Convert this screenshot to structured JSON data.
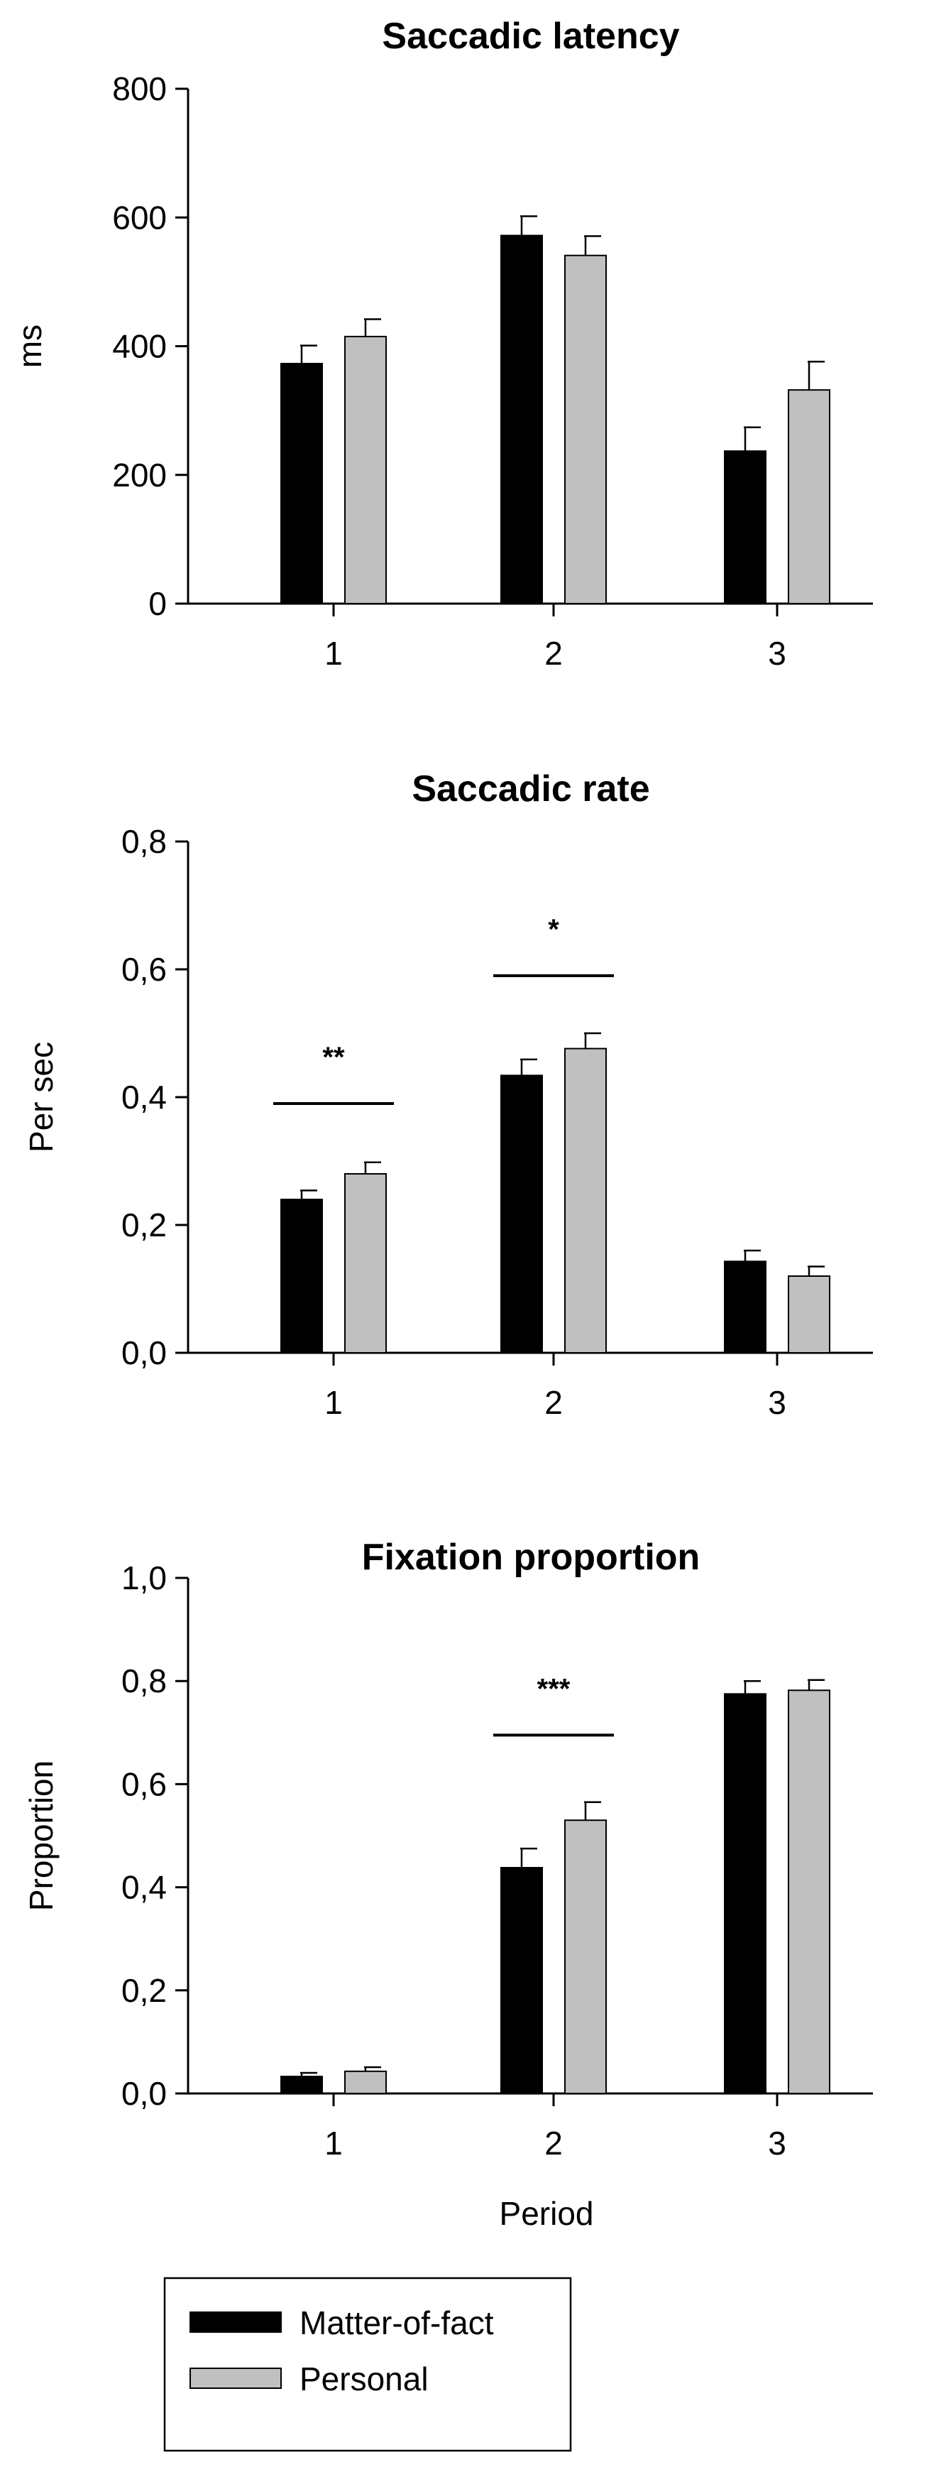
{
  "chart_data": [
    {
      "type": "bar",
      "title": "Saccadic latency",
      "xlabel": "",
      "ylabel": "ms",
      "categories": [
        "1",
        "2",
        "3"
      ],
      "ylim": [
        0,
        800
      ],
      "yticks": [
        0,
        200,
        400,
        600,
        800
      ],
      "ytick_labels": [
        "0",
        "200",
        "400",
        "600",
        "800"
      ],
      "series": [
        {
          "name": "Matter-of-fact",
          "values": [
            373,
            572,
            237
          ],
          "errors": [
            28,
            30,
            37
          ]
        },
        {
          "name": "Personal",
          "values": [
            415,
            541,
            332
          ],
          "errors": [
            27,
            30,
            44
          ]
        }
      ],
      "significance": []
    },
    {
      "type": "bar",
      "title": "Saccadic rate",
      "xlabel": "",
      "ylabel": "Per sec",
      "categories": [
        "1",
        "2",
        "3"
      ],
      "ylim": [
        0,
        0.8
      ],
      "yticks": [
        0,
        0.2,
        0.4,
        0.6,
        0.8
      ],
      "ytick_labels": [
        "0,0",
        "0,2",
        "0,4",
        "0,6",
        "0,8"
      ],
      "series": [
        {
          "name": "Matter-of-fact",
          "values": [
            0.24,
            0.434,
            0.143
          ],
          "errors": [
            0.014,
            0.025,
            0.017
          ]
        },
        {
          "name": "Personal",
          "values": [
            0.28,
            0.476,
            0.12
          ],
          "errors": [
            0.018,
            0.024,
            0.015
          ]
        }
      ],
      "significance": [
        {
          "category": "1",
          "label": "**",
          "y": 0.39
        },
        {
          "category": "2",
          "label": "*",
          "y": 0.59
        }
      ]
    },
    {
      "type": "bar",
      "title": "Fixation proportion",
      "xlabel": "Period",
      "ylabel": "Proportion",
      "categories": [
        "1",
        "2",
        "3"
      ],
      "ylim": [
        0,
        1.0
      ],
      "yticks": [
        0,
        0.2,
        0.4,
        0.6,
        0.8,
        1.0
      ],
      "ytick_labels": [
        "0,0",
        "0,2",
        "0,4",
        "0,6",
        "0,8",
        "1,0"
      ],
      "series": [
        {
          "name": "Matter-of-fact",
          "values": [
            0.033,
            0.438,
            0.775
          ],
          "errors": [
            0.007,
            0.037,
            0.025
          ]
        },
        {
          "name": "Personal",
          "values": [
            0.043,
            0.53,
            0.782
          ],
          "errors": [
            0.008,
            0.035,
            0.02
          ]
        }
      ],
      "significance": [
        {
          "category": "2",
          "label": "***",
          "y": 0.695
        }
      ]
    }
  ],
  "legend": {
    "items": [
      {
        "label": "Matter-of-fact",
        "color": "#000000"
      },
      {
        "label": "Personal",
        "color": "#c0c0c0"
      }
    ]
  },
  "colors": {
    "series": [
      "#000000",
      "#c0c0c0"
    ],
    "bar_edge": "#000000",
    "axis": "#000000",
    "background": "#ffffff"
  }
}
